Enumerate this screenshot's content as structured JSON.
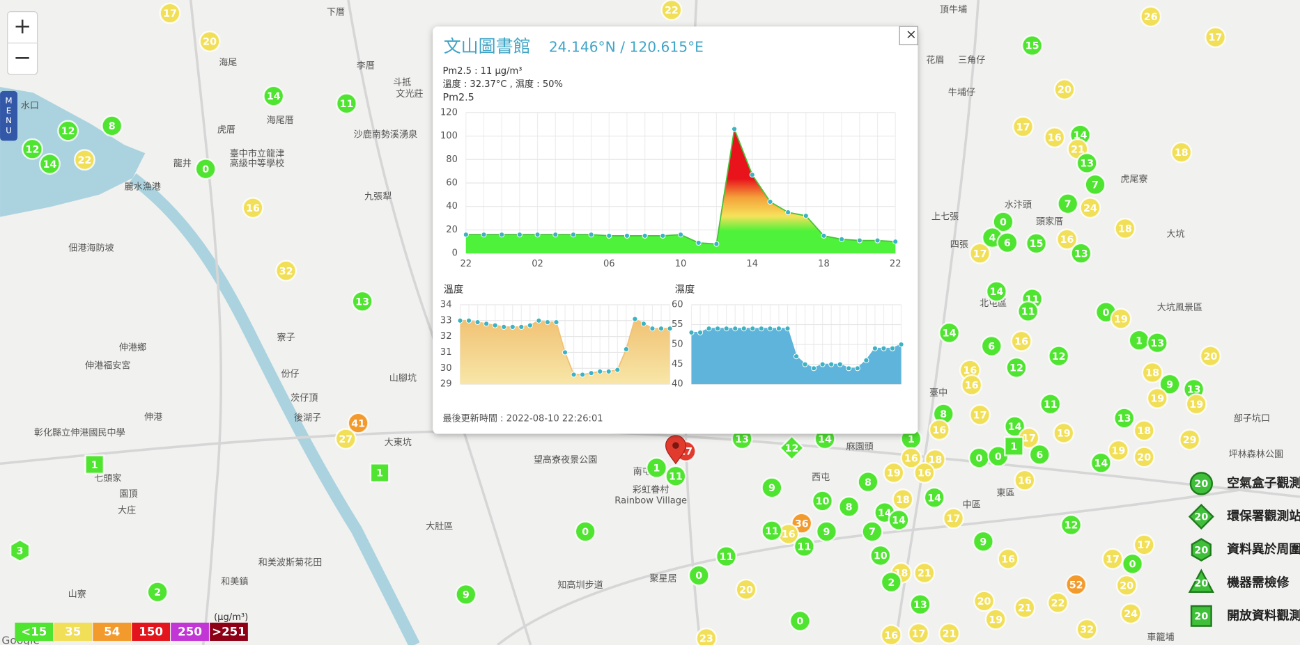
{
  "map": {
    "zoom_in": "+",
    "zoom_out": "−",
    "menu": [
      "M",
      "E",
      "N",
      "U"
    ],
    "attribution": "Google",
    "places": [
      "下厝",
      "海尾",
      "李厝",
      "斗抵",
      "文光莊",
      "水口",
      "虎厝",
      "海尾厝",
      "龍井",
      "臺中市立龍津",
      "高級中等學校",
      "沙鹿南勢溪湧泉",
      "九張犁",
      "麗水漁港",
      "佃港海防坡",
      "寮子",
      "伸港鄉",
      "伸港福安宮",
      "份仔",
      "山腳坑",
      "茨仔頂",
      "伸港",
      "後湖子",
      "大東坑",
      "彰化縣立伸港國民中學",
      "七頭家",
      "園頂",
      "大庄",
      "大肚區",
      "山寮",
      "和美鎮",
      "和美波斯菊花田",
      "望高寮夜景公園",
      "南屯區",
      "彩虹眷村",
      "Rainbow Village",
      "聚星居",
      "知高圳步道",
      "頂牛埔",
      "三角仔",
      "花眉",
      "牛埔仔",
      "上七張",
      "四張",
      "頭家厝",
      "水汴頭",
      "虎尾寮",
      "大坑",
      "大坑風景區",
      "北屯區",
      "臺中",
      "中區",
      "東區",
      "麻園頭",
      "西屯",
      "車籠埔",
      "部子坑口",
      "坪林森林公園"
    ],
    "markers": [
      17,
      20,
      14,
      11,
      12,
      8,
      12,
      14,
      22,
      0,
      16,
      32,
      13,
      41,
      27,
      22,
      26,
      17,
      15,
      20,
      17,
      16,
      14,
      21,
      13,
      7,
      18,
      7,
      24,
      0,
      4,
      6,
      17,
      15,
      16,
      13,
      18,
      14,
      11,
      11,
      0,
      19,
      14,
      6,
      16,
      1,
      13,
      12,
      12,
      20,
      16,
      16,
      18,
      9,
      13,
      19,
      19,
      11,
      17,
      8,
      16,
      14,
      17,
      19,
      13,
      18,
      29,
      6,
      0,
      0,
      16,
      14,
      19,
      20,
      17,
      1,
      11,
      13,
      12,
      14,
      1,
      16,
      18,
      19,
      16,
      8,
      18,
      14,
      9,
      10,
      8,
      14,
      14,
      17,
      7,
      36,
      16,
      11,
      9,
      11,
      9,
      12,
      0,
      11,
      0,
      20,
      10,
      18,
      21,
      2,
      16,
      17,
      17,
      0,
      52,
      20,
      13,
      20,
      19,
      21,
      22,
      24,
      32,
      21,
      17,
      16,
      0,
      23,
      2,
      9,
      1,
      1,
      3,
      1
    ]
  },
  "popup": {
    "title": "文山圖書館",
    "coords": "24.146°N / 120.615°E",
    "close": "×",
    "pm_line": "Pm2.5 : 11 μg/m³",
    "weather_line": "溫度 : 32.37°C , 濕度 : 50%",
    "updated": "最後更新時間 : 2022-08-10 22:26:01",
    "charts": [
      {
        "type": "area",
        "title": "Pm2.5",
        "categories": [
          "22",
          null,
          null,
          null,
          "02",
          null,
          null,
          null,
          "06",
          null,
          null,
          null,
          "10",
          null,
          null,
          null,
          "14",
          null,
          null,
          null,
          "18",
          null,
          null,
          null,
          "22"
        ],
        "values": [
          16,
          16,
          16,
          16,
          16,
          16,
          16,
          16,
          15,
          15,
          15,
          15,
          16,
          9,
          8,
          106,
          67,
          44,
          35,
          32,
          15,
          12,
          11,
          11,
          10
        ],
        "ylim": [
          0,
          120
        ],
        "yticks": [
          0,
          20,
          40,
          60,
          80,
          100,
          120
        ]
      },
      {
        "type": "area",
        "title": "溫度",
        "color": "#f0c274",
        "values": [
          33,
          33,
          32.9,
          32.8,
          32.7,
          32.6,
          32.6,
          32.6,
          32.7,
          33,
          32.9,
          32.9,
          31,
          29.6,
          29.6,
          29.7,
          29.8,
          29.8,
          29.9,
          31.2,
          33.1,
          32.8,
          32.5,
          32.5,
          32.5
        ],
        "ylim": [
          29,
          34
        ],
        "yticks": [
          29,
          30,
          31,
          32,
          33,
          34
        ]
      },
      {
        "type": "area",
        "title": "濕度",
        "color": "#5fb4db",
        "values": [
          53,
          53,
          54,
          54,
          54,
          54,
          54,
          54,
          54,
          54,
          54,
          54,
          47,
          45,
          44,
          45,
          45,
          45,
          44,
          44,
          46,
          49,
          49,
          49,
          50
        ],
        "ylim": [
          40,
          60
        ],
        "yticks": [
          40,
          45,
          50,
          55,
          60
        ]
      }
    ]
  },
  "legend": {
    "unit": "(μg/m³)",
    "levels": [
      {
        "label": "<15",
        "color": "#4ee42f"
      },
      {
        "label": "35",
        "color": "#f2df58"
      },
      {
        "label": "54",
        "color": "#f39a2d"
      },
      {
        "label": "150",
        "color": "#e3141c"
      },
      {
        "label": "250",
        "color": "#c236d6"
      },
      {
        "label": ">251",
        "color": "#8d0016"
      }
    ]
  },
  "side_legend": {
    "sample": "20",
    "items": [
      "空氣盒子觀測",
      "環保署觀測站",
      "資料異於周圍",
      "機器需檢修",
      "開放資料觀測"
    ]
  }
}
